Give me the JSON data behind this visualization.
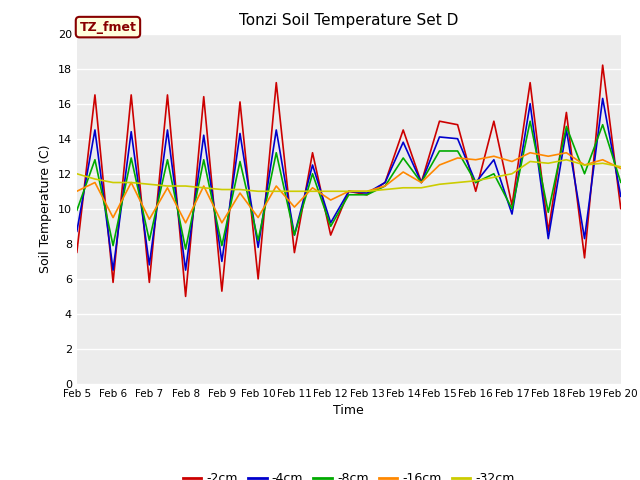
{
  "title": "Tonzi Soil Temperature Set D",
  "xlabel": "Time",
  "ylabel": "Soil Temperature (C)",
  "ylim": [
    0,
    20
  ],
  "yticks": [
    0,
    2,
    4,
    6,
    8,
    10,
    12,
    14,
    16,
    18,
    20
  ],
  "xtick_labels": [
    "Feb 5",
    "Feb 6",
    "Feb 7",
    "Feb 8",
    "Feb 9",
    "Feb 10",
    "Feb 11",
    "Feb 12",
    "Feb 13",
    "Feb 14",
    "Feb 15",
    "Feb 16",
    "Feb 17",
    "Feb 18",
    "Feb 19",
    "Feb 20"
  ],
  "annotation_text": "TZ_fmet",
  "annotation_bg": "#ffffdd",
  "annotation_border": "#880000",
  "colors": {
    "-2cm": "#cc0000",
    "-4cm": "#0000cc",
    "-8cm": "#00aa00",
    "-16cm": "#ff8800",
    "-32cm": "#cccc00"
  },
  "plot_bg": "#ececec",
  "fig_bg": "#ffffff",
  "grid_color": "#ffffff",
  "series": {
    "-2cm": [
      7.5,
      16.5,
      5.8,
      16.5,
      5.8,
      16.5,
      5.0,
      16.4,
      5.3,
      16.1,
      6.0,
      17.2,
      7.5,
      13.2,
      8.5,
      11.0,
      10.8,
      11.5,
      14.5,
      11.5,
      15.0,
      14.8,
      11.0,
      15.0,
      10.2,
      17.2,
      8.7,
      15.5,
      7.2,
      18.2,
      10.0
    ],
    "-4cm": [
      8.7,
      14.5,
      6.5,
      14.4,
      6.8,
      14.5,
      6.5,
      14.2,
      7.0,
      14.3,
      7.8,
      14.5,
      8.5,
      12.5,
      9.2,
      11.0,
      10.9,
      11.5,
      13.8,
      11.5,
      14.1,
      14.0,
      11.5,
      12.8,
      9.7,
      16.0,
      8.3,
      14.5,
      8.3,
      16.3,
      10.7
    ],
    "-8cm": [
      9.9,
      12.8,
      7.9,
      12.9,
      8.2,
      12.8,
      7.7,
      12.8,
      7.9,
      12.7,
      8.2,
      13.2,
      8.5,
      12.0,
      9.0,
      10.8,
      10.8,
      11.3,
      12.9,
      11.5,
      13.3,
      13.3,
      11.5,
      12.0,
      10.0,
      15.0,
      9.8,
      14.7,
      12.0,
      14.8,
      11.5
    ],
    "-16cm": [
      11.0,
      11.5,
      9.5,
      11.5,
      9.4,
      11.2,
      9.2,
      11.3,
      9.2,
      10.9,
      9.5,
      11.3,
      10.1,
      11.2,
      10.5,
      11.0,
      11.0,
      11.3,
      12.1,
      11.5,
      12.5,
      12.9,
      12.8,
      13.0,
      12.7,
      13.2,
      13.0,
      13.2,
      12.5,
      12.8,
      12.3
    ],
    "-32cm": [
      12.0,
      11.7,
      11.5,
      11.5,
      11.4,
      11.3,
      11.3,
      11.2,
      11.1,
      11.1,
      11.0,
      11.0,
      11.0,
      11.0,
      11.0,
      11.0,
      11.0,
      11.1,
      11.2,
      11.2,
      11.4,
      11.5,
      11.6,
      11.8,
      12.0,
      12.7,
      12.6,
      12.8,
      12.5,
      12.6,
      12.4
    ]
  }
}
